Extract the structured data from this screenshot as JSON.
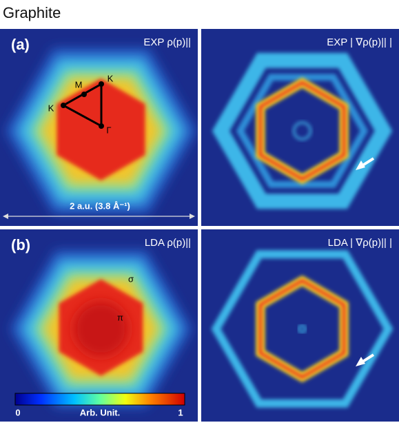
{
  "figure": {
    "title": "Graphite",
    "panels": [
      {
        "label": "(a)",
        "caption": "EXP ρ(p)||"
      },
      {
        "caption": "EXP | ∇ρ(p)|| |"
      },
      {
        "label": "(b)",
        "caption": "LDA ρ(p)||"
      },
      {
        "caption": "LDA | ∇ρ(p)|| |"
      }
    ],
    "points": [
      "K",
      "M",
      "K",
      "Γ"
    ],
    "bands": [
      "σ",
      "π"
    ],
    "scale": "2 a.u. (3.8 Å⁻¹)",
    "colorbar": {
      "min": 0,
      "label": "Arb. Unit.",
      "max": 1
    }
  }
}
